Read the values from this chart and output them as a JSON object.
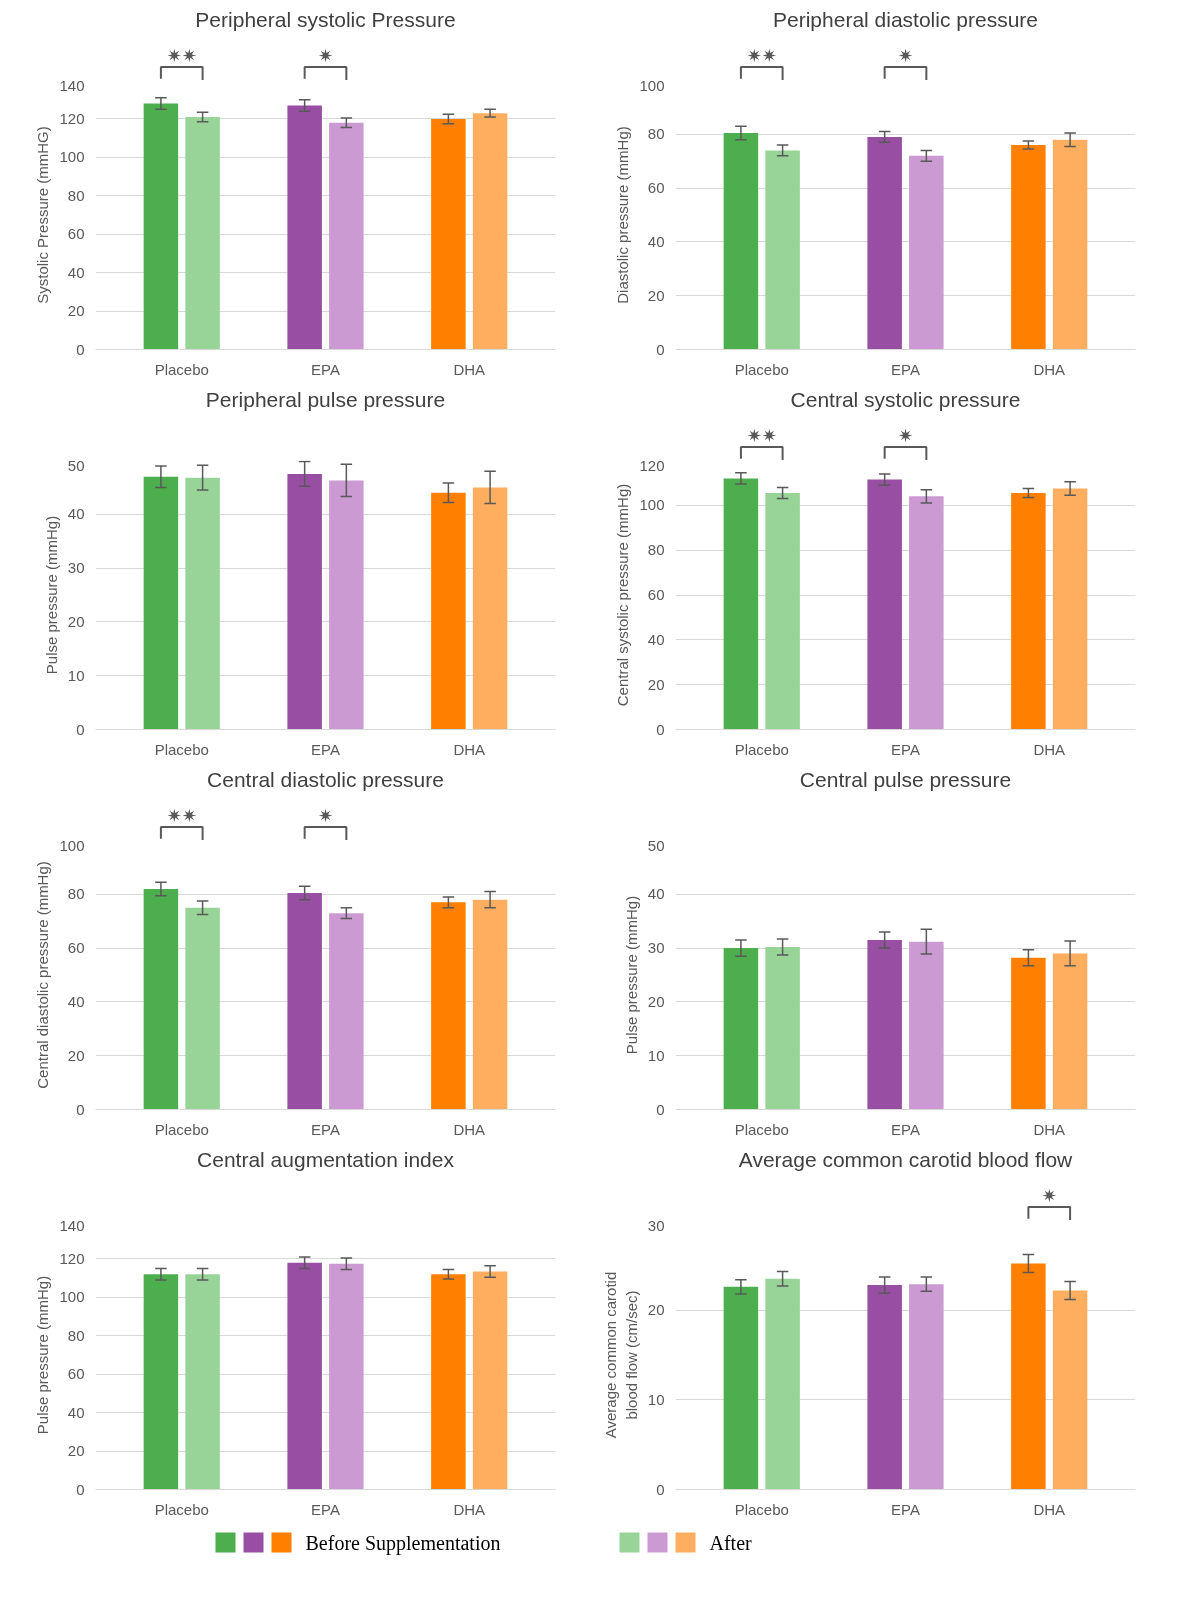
{
  "chart_data": [
    {
      "type": "bar",
      "title": "Peripheral systolic Pressure",
      "ylabel": "Systolic Pressure (mmHG)",
      "categories": [
        "Placebo",
        "EPA",
        "DHA"
      ],
      "ylim": [
        0,
        140
      ],
      "yticks": [
        0,
        20,
        40,
        60,
        80,
        100,
        120,
        140
      ],
      "grid": "y",
      "series": [
        {
          "colors": [
            "#4cae4c",
            "#984ea3",
            "#ff7f00"
          ],
          "values": [
            128,
            127,
            120
          ],
          "errors": [
            3,
            3,
            2.5
          ]
        },
        {
          "colors": [
            "#98d498",
            "#cc9ad2",
            "#ffae5f"
          ],
          "values": [
            121,
            118,
            123
          ],
          "errors": [
            2.5,
            2.5,
            2
          ]
        }
      ],
      "annotations": [
        "✷✷",
        "✷"
      ]
    },
    {
      "type": "bar",
      "title": "Peripheral diastolic pressure",
      "ylabel": "Diastolic pressure (mmHg)",
      "categories": [
        "Placebo",
        "EPA",
        "DHA"
      ],
      "ylim": [
        0,
        100
      ],
      "yticks": [
        0,
        20,
        40,
        60,
        80,
        100
      ],
      "grid": "y",
      "series": [
        {
          "colors": [
            "#4cae4c",
            "#984ea3",
            "#ff7f00"
          ],
          "values": [
            80.5,
            79,
            76
          ],
          "errors": [
            2.5,
            2,
            1.5
          ]
        },
        {
          "colors": [
            "#98d498",
            "#cc9ad2",
            "#ffae5f"
          ],
          "values": [
            74,
            72,
            78
          ],
          "errors": [
            2,
            2,
            2.5
          ]
        }
      ],
      "annotations": [
        "✷✷",
        "✷"
      ]
    },
    {
      "type": "bar",
      "title": "Peripheral pulse pressure",
      "ylabel": "Pulse pressure (mmHg)",
      "categories": [
        "Placebo",
        "EPA",
        "DHA"
      ],
      "ylim": [
        0,
        50
      ],
      "yticks": [
        0,
        10,
        20,
        30,
        40,
        50
      ],
      "grid": "y",
      "series": [
        {
          "colors": [
            "#4cae4c",
            "#984ea3",
            "#ff7f00"
          ],
          "values": [
            47,
            47.5,
            44
          ],
          "errors": [
            2,
            2.3,
            1.8
          ]
        },
        {
          "colors": [
            "#98d498",
            "#cc9ad2",
            "#ffae5f"
          ],
          "values": [
            46.8,
            46.3,
            45
          ],
          "errors": [
            2.3,
            3,
            3
          ]
        }
      ]
    },
    {
      "type": "bar",
      "title": "Central systolic pressure",
      "ylabel": "Central systolic pressure (mmHg)",
      "categories": [
        "Placebo",
        "EPA",
        "DHA"
      ],
      "ylim": [
        0,
        120
      ],
      "yticks": [
        0,
        20,
        40,
        60,
        80,
        100,
        120
      ],
      "grid": "y",
      "series": [
        {
          "colors": [
            "#4cae4c",
            "#984ea3",
            "#ff7f00"
          ],
          "values": [
            112,
            111.5,
            105.5
          ],
          "errors": [
            2.5,
            2.5,
            2
          ]
        },
        {
          "colors": [
            "#98d498",
            "#cc9ad2",
            "#ffae5f"
          ],
          "values": [
            105.5,
            104,
            107.5
          ],
          "errors": [
            2.5,
            3,
            3
          ]
        }
      ],
      "annotations": [
        "✷✷",
        "✷"
      ]
    },
    {
      "type": "bar",
      "title": "Central diastolic pressure",
      "ylabel": "Central diastolic pressure (mmHg)",
      "categories": [
        "Placebo",
        "EPA",
        "DHA"
      ],
      "ylim": [
        0,
        100
      ],
      "yticks": [
        0,
        20,
        40,
        60,
        80,
        100
      ],
      "grid": "y",
      "series": [
        {
          "colors": [
            "#4cae4c",
            "#984ea3",
            "#ff7f00"
          ],
          "values": [
            82,
            80.5,
            77
          ],
          "errors": [
            2.5,
            2.5,
            2
          ]
        },
        {
          "colors": [
            "#98d498",
            "#cc9ad2",
            "#ffae5f"
          ],
          "values": [
            75,
            73,
            78
          ],
          "errors": [
            2.5,
            2,
            3
          ]
        }
      ],
      "annotations": [
        "✷✷",
        "✷"
      ]
    },
    {
      "type": "bar",
      "title": "Central pulse pressure",
      "ylabel": "Pulse pressure (mmHg)",
      "categories": [
        "Placebo",
        "EPA",
        "DHA"
      ],
      "ylim": [
        0,
        50
      ],
      "yticks": [
        0,
        10,
        20,
        30,
        40,
        50
      ],
      "grid": "y",
      "series": [
        {
          "colors": [
            "#4cae4c",
            "#984ea3",
            "#ff7f00"
          ],
          "values": [
            30,
            31.5,
            28.2
          ],
          "errors": [
            1.5,
            1.5,
            1.5
          ]
        },
        {
          "colors": [
            "#98d498",
            "#cc9ad2",
            "#ffae5f"
          ],
          "values": [
            30.2,
            31.2,
            29
          ],
          "errors": [
            1.5,
            2.3,
            2.3
          ]
        }
      ]
    },
    {
      "type": "bar",
      "title": "Central augmentation index",
      "ylabel": "Pulse pressure (mmHg)",
      "categories": [
        "Placebo",
        "EPA",
        "DHA"
      ],
      "ylim": [
        0,
        140
      ],
      "yticks": [
        0,
        20,
        40,
        60,
        80,
        100,
        120,
        140
      ],
      "grid": "y",
      "series": [
        {
          "colors": [
            "#4cae4c",
            "#984ea3",
            "#ff7f00"
          ],
          "values": [
            112,
            118,
            112
          ],
          "errors": [
            3,
            3,
            2.5
          ]
        },
        {
          "colors": [
            "#98d498",
            "#cc9ad2",
            "#ffae5f"
          ],
          "values": [
            112,
            117.5,
            113.5
          ],
          "errors": [
            3,
            3,
            3
          ]
        }
      ]
    },
    {
      "type": "bar",
      "title": "Average common carotid blood flow",
      "ylabel": "Average common carotid blood flow (cm/sec)",
      "categories": [
        "Placebo",
        "EPA",
        "DHA"
      ],
      "ylim": [
        0,
        30
      ],
      "yticks": [
        0,
        10,
        20,
        30
      ],
      "grid": "y",
      "legend": "bottom",
      "series": [
        {
          "name": "Before Supplementation",
          "colors": [
            "#4cae4c",
            "#984ea3",
            "#ff7f00"
          ],
          "values": [
            22.6,
            22.8,
            25.2
          ],
          "errors": [
            0.8,
            0.9,
            1
          ]
        },
        {
          "name": "After",
          "colors": [
            "#98d498",
            "#cc9ad2",
            "#ffae5f"
          ],
          "values": [
            23.5,
            22.9,
            22.2
          ],
          "errors": [
            0.8,
            0.8,
            1
          ]
        }
      ],
      "annotations": [
        "✷"
      ]
    }
  ]
}
